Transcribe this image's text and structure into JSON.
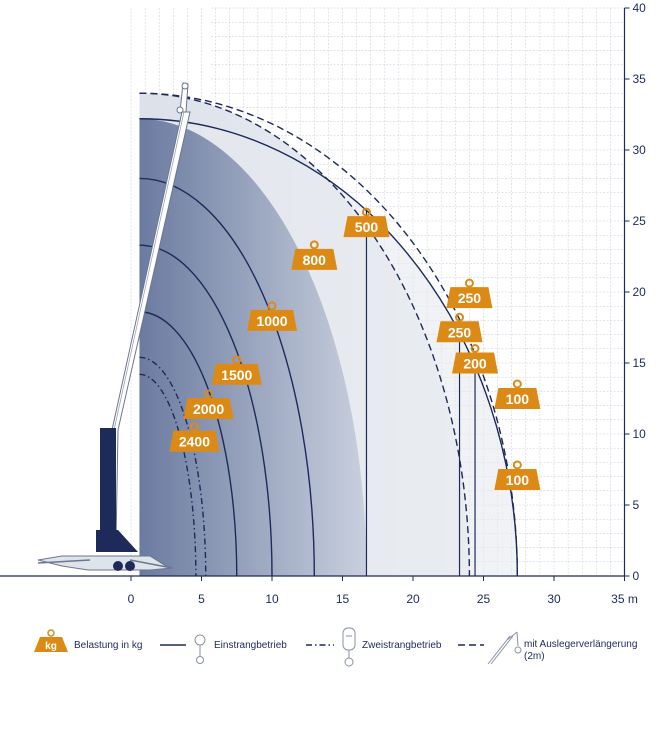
{
  "chart_data": {
    "type": "area",
    "xlim": [
      0,
      35
    ],
    "ylim": [
      0,
      40
    ],
    "x_ticks": [
      "0",
      "5",
      "10",
      "15",
      "20",
      "25",
      "30",
      "35 m"
    ],
    "y_ticks": [
      "0",
      "5",
      "10",
      "15",
      "20",
      "25",
      "30",
      "35",
      "40"
    ],
    "grid": true,
    "envelopes": [
      {
        "load": "2400",
        "style": "dashdot",
        "reach": 4.6,
        "height": 14.2
      },
      {
        "load": "2000",
        "style": "dashdot",
        "reach": 5.3,
        "height": 15.4
      },
      {
        "load": "1500",
        "style": "solid",
        "reach": 7.5,
        "height": 18.6
      },
      {
        "load": "1000",
        "style": "solid",
        "reach": 10.0,
        "height": 23.3
      },
      {
        "load": "800",
        "style": "solid",
        "reach": 13.0,
        "height": 28.0
      },
      {
        "load": "500",
        "style": "solid",
        "reach": 16.7,
        "height": 32.2
      },
      {
        "load": "250",
        "style": "solid",
        "reach": 23.3,
        "height": 32.2
      },
      {
        "load": "200",
        "style": "solid",
        "reach": 24.4,
        "height": 32.2
      },
      {
        "load": "100",
        "style": "solid",
        "reach": 27.4,
        "height": 32.2
      },
      {
        "load": "250",
        "style": "dashed",
        "reach": 24.0,
        "height": 34.0
      },
      {
        "load": "100",
        "style": "dashed",
        "reach": 27.4,
        "height": 34.0
      }
    ],
    "load_labels": [
      {
        "text": "2400",
        "x": 4.5,
        "y": 9.5
      },
      {
        "text": "2000",
        "x": 5.5,
        "y": 11.8
      },
      {
        "text": "1500",
        "x": 7.5,
        "y": 14.2
      },
      {
        "text": "1000",
        "x": 10.0,
        "y": 18.0
      },
      {
        "text": "800",
        "x": 13.0,
        "y": 22.3
      },
      {
        "text": "500",
        "x": 16.7,
        "y": 24.6
      },
      {
        "text": "250",
        "x": 24.0,
        "y": 19.6
      },
      {
        "text": "250",
        "x": 23.3,
        "y": 17.2
      },
      {
        "text": "200",
        "x": 24.4,
        "y": 15.0
      },
      {
        "text": "100",
        "x": 27.4,
        "y": 12.5
      },
      {
        "text": "100",
        "x": 27.4,
        "y": 6.8
      }
    ],
    "colors": {
      "accent": "#dc8a16",
      "line": "#1d2a5a",
      "grid": "#c5cad6",
      "inner_fill": "#6f7fa3",
      "outer_fill": "#e6e9ef",
      "crane": "#1d2a5a"
    }
  },
  "legend": {
    "badge": "kg",
    "load_label": "Belastung in kg",
    "single_label": "Einstrangbetrieb",
    "double_label": "Zweistrangbetrieb",
    "extension_label_line1": "mit Auslegerverlängerung",
    "extension_label_line2": "(2m)"
  }
}
